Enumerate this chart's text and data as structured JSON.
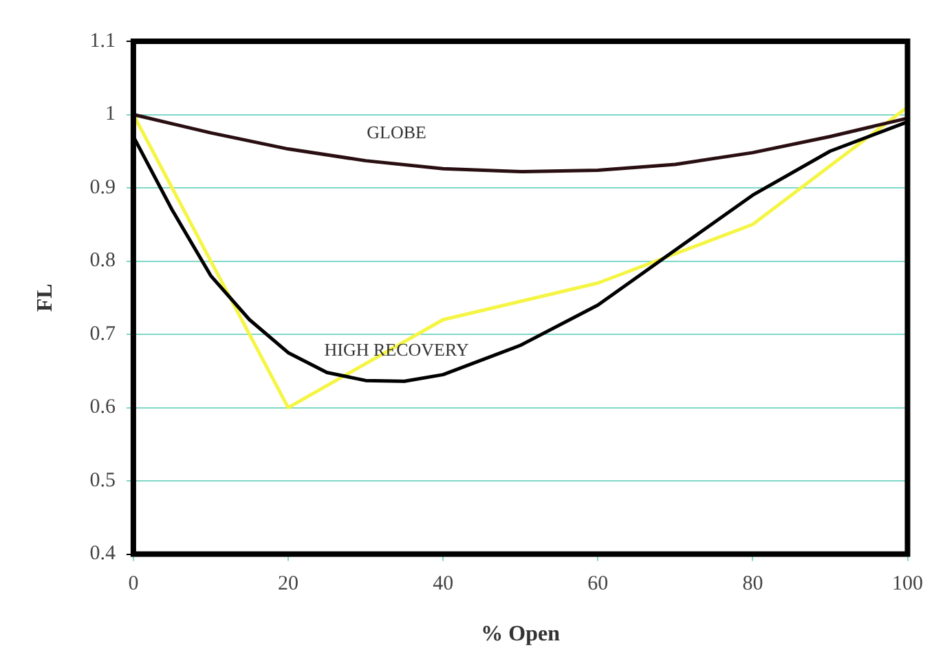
{
  "chart_data": {
    "type": "line",
    "xlabel": "% Open",
    "ylabel": "FL",
    "xlim": [
      0,
      100
    ],
    "xticks": [
      0,
      20,
      40,
      60,
      80,
      100
    ],
    "ylim": [
      0.4,
      1.1
    ],
    "yticks": [
      0.4,
      0.5,
      0.6,
      0.7,
      0.8,
      0.9,
      1,
      1.1
    ],
    "grid": "y",
    "legend": false,
    "marker": "none",
    "series": [
      {
        "name": "GLOBE",
        "color": "#2a0f12",
        "x": [
          0,
          10,
          20,
          30,
          40,
          50,
          60,
          70,
          80,
          90,
          100
        ],
        "values": [
          1,
          0.975,
          0.953,
          0.937,
          0.926,
          0.922,
          0.924,
          0.932,
          0.948,
          0.97,
          0.995
        ]
      },
      {
        "name": "HIGH RECOVERY",
        "color": "#000000",
        "x": [
          0,
          5,
          10,
          15,
          20,
          25,
          30,
          35,
          40,
          50,
          60,
          70,
          80,
          90,
          100
        ],
        "values": [
          0.97,
          0.87,
          0.78,
          0.72,
          0.675,
          0.648,
          0.637,
          0.636,
          0.645,
          0.685,
          0.74,
          0.815,
          0.89,
          0.95,
          0.99
        ]
      },
      {
        "color": "#f5f545",
        "x": [
          0,
          20,
          40,
          60,
          80,
          100
        ],
        "values": [
          1,
          0.6,
          0.72,
          0.77,
          0.85,
          1.01
        ]
      }
    ]
  }
}
